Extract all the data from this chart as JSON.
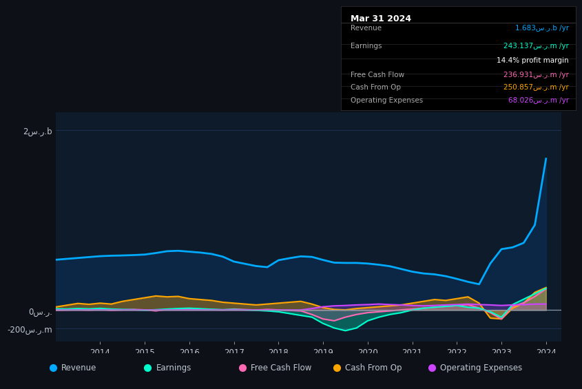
{
  "bg_color": "#0d1117",
  "plot_bg_color": "#0d1b2a",
  "grid_color": "#1e3050",
  "text_color": "#c0c8d0",
  "title_box": {
    "date": "Mar 31 2024",
    "rows": [
      {
        "label": "Revenue",
        "value": "1.683س.ر.b /yr",
        "color": "#00aaff"
      },
      {
        "label": "Earnings",
        "value": "243.137س.ر.m /yr",
        "color": "#00ffcc"
      },
      {
        "label": "",
        "value": "14.4% profit margin",
        "color": "#ffffff"
      },
      {
        "label": "Free Cash Flow",
        "value": "236.931س.ر.m /yr",
        "color": "#ff69b4"
      },
      {
        "label": "Cash From Op",
        "value": "250.857س.ر.m /yr",
        "color": "#ffa500"
      },
      {
        "label": "Operating Expenses",
        "value": "68.026س.ر.m /yr",
        "color": "#cc44ff"
      }
    ]
  },
  "ylabel_top": "2س.ر.b",
  "ylabel_zero": "0س.ر.",
  "ylabel_bottom": "-200س.ر.m",
  "ylim": [
    -350,
    2200
  ],
  "series": {
    "Revenue": {
      "color": "#00aaff",
      "lw": 2.0,
      "x": [
        2013.0,
        2013.25,
        2013.5,
        2013.75,
        2014.0,
        2014.25,
        2014.5,
        2014.75,
        2015.0,
        2015.25,
        2015.5,
        2015.75,
        2016.0,
        2016.25,
        2016.5,
        2016.75,
        2017.0,
        2017.25,
        2017.5,
        2017.75,
        2018.0,
        2018.25,
        2018.5,
        2018.75,
        2019.0,
        2019.25,
        2019.5,
        2019.75,
        2020.0,
        2020.25,
        2020.5,
        2020.75,
        2021.0,
        2021.25,
        2021.5,
        2021.75,
        2022.0,
        2022.25,
        2022.5,
        2022.75,
        2023.0,
        2023.25,
        2023.5,
        2023.75,
        2024.0
      ],
      "y": [
        560,
        570,
        580,
        590,
        600,
        605,
        608,
        612,
        618,
        635,
        655,
        660,
        650,
        640,
        625,
        595,
        540,
        515,
        490,
        478,
        555,
        578,
        598,
        592,
        558,
        528,
        525,
        525,
        518,
        505,
        488,
        458,
        428,
        408,
        398,
        378,
        348,
        315,
        288,
        518,
        678,
        698,
        748,
        948,
        1683
      ]
    },
    "Earnings": {
      "color": "#00ffcc",
      "lw": 1.5,
      "x": [
        2013.0,
        2013.25,
        2013.5,
        2013.75,
        2014.0,
        2014.25,
        2014.5,
        2014.75,
        2015.0,
        2015.25,
        2015.5,
        2015.75,
        2016.0,
        2016.25,
        2016.5,
        2016.75,
        2017.0,
        2017.25,
        2017.5,
        2017.75,
        2018.0,
        2018.25,
        2018.5,
        2018.75,
        2019.0,
        2019.25,
        2019.5,
        2019.75,
        2020.0,
        2020.25,
        2020.5,
        2020.75,
        2021.0,
        2021.25,
        2021.5,
        2021.75,
        2022.0,
        2022.25,
        2022.5,
        2022.75,
        2023.0,
        2023.25,
        2023.5,
        2023.75,
        2024.0
      ],
      "y": [
        15,
        12,
        18,
        14,
        20,
        12,
        8,
        5,
        0,
        5,
        12,
        18,
        22,
        16,
        10,
        5,
        8,
        3,
        -2,
        -8,
        -18,
        -38,
        -58,
        -78,
        -148,
        -198,
        -228,
        -198,
        -118,
        -78,
        -48,
        -28,
        2,
        22,
        32,
        42,
        52,
        32,
        22,
        -18,
        -78,
        62,
        122,
        182,
        243
      ]
    },
    "FreeCashFlow": {
      "color": "#ff69b4",
      "lw": 1.5,
      "x": [
        2013.0,
        2013.25,
        2013.5,
        2013.75,
        2014.0,
        2014.25,
        2014.5,
        2014.75,
        2015.0,
        2015.25,
        2015.5,
        2015.75,
        2016.0,
        2016.25,
        2016.5,
        2016.75,
        2017.0,
        2017.25,
        2017.5,
        2017.75,
        2018.0,
        2018.25,
        2018.5,
        2018.75,
        2019.0,
        2019.25,
        2019.5,
        2019.75,
        2020.0,
        2020.25,
        2020.5,
        2020.75,
        2021.0,
        2021.25,
        2021.5,
        2021.75,
        2022.0,
        2022.25,
        2022.5,
        2022.75,
        2023.0,
        2023.25,
        2023.5,
        2023.75,
        2024.0
      ],
      "y": [
        -2,
        2,
        5,
        0,
        8,
        -2,
        3,
        8,
        3,
        -8,
        8,
        12,
        18,
        12,
        6,
        2,
        12,
        6,
        2,
        8,
        3,
        -3,
        -8,
        -48,
        -98,
        -118,
        -78,
        -48,
        -28,
        -18,
        -8,
        3,
        12,
        22,
        32,
        42,
        52,
        62,
        22,
        -28,
        -98,
        42,
        82,
        152,
        237
      ]
    },
    "CashFromOp": {
      "color": "#ffa500",
      "lw": 1.5,
      "x": [
        2013.0,
        2013.25,
        2013.5,
        2013.75,
        2014.0,
        2014.25,
        2014.5,
        2014.75,
        2015.0,
        2015.25,
        2015.5,
        2015.75,
        2016.0,
        2016.25,
        2016.5,
        2016.75,
        2017.0,
        2017.25,
        2017.5,
        2017.75,
        2018.0,
        2018.25,
        2018.5,
        2018.75,
        2019.0,
        2019.25,
        2019.5,
        2019.75,
        2020.0,
        2020.25,
        2020.5,
        2020.75,
        2021.0,
        2021.25,
        2021.5,
        2021.75,
        2022.0,
        2022.25,
        2022.5,
        2022.75,
        2023.0,
        2023.25,
        2023.5,
        2023.75,
        2024.0
      ],
      "y": [
        35,
        55,
        75,
        65,
        78,
        68,
        98,
        118,
        138,
        158,
        148,
        153,
        128,
        118,
        108,
        88,
        78,
        68,
        58,
        68,
        78,
        88,
        98,
        68,
        28,
        8,
        3,
        18,
        28,
        38,
        48,
        58,
        78,
        98,
        118,
        108,
        128,
        148,
        78,
        -88,
        -98,
        22,
        78,
        198,
        251
      ]
    },
    "OperatingExpenses": {
      "color": "#cc44ff",
      "lw": 1.5,
      "x": [
        2013.0,
        2013.25,
        2013.5,
        2013.75,
        2014.0,
        2014.25,
        2014.5,
        2014.75,
        2015.0,
        2015.25,
        2015.5,
        2015.75,
        2016.0,
        2016.25,
        2016.5,
        2016.75,
        2017.0,
        2017.25,
        2017.5,
        2017.75,
        2018.0,
        2018.25,
        2018.5,
        2018.75,
        2019.0,
        2019.25,
        2019.5,
        2019.75,
        2020.0,
        2020.25,
        2020.5,
        2020.75,
        2021.0,
        2021.25,
        2021.5,
        2021.75,
        2022.0,
        2022.25,
        2022.5,
        2022.75,
        2023.0,
        2023.25,
        2023.5,
        2023.75,
        2024.0
      ],
      "y": [
        2,
        2,
        2,
        2,
        2,
        2,
        2,
        2,
        2,
        2,
        2,
        2,
        2,
        2,
        2,
        2,
        2,
        2,
        2,
        2,
        2,
        2,
        2,
        18,
        38,
        48,
        52,
        58,
        62,
        68,
        62,
        58,
        52,
        48,
        52,
        58,
        62,
        68,
        62,
        58,
        52,
        58,
        62,
        68,
        68
      ]
    }
  },
  "legend": [
    {
      "label": "Revenue",
      "color": "#00aaff"
    },
    {
      "label": "Earnings",
      "color": "#00ffcc"
    },
    {
      "label": "Free Cash Flow",
      "color": "#ff69b4"
    },
    {
      "label": "Cash From Op",
      "color": "#ffa500"
    },
    {
      "label": "Operating Expenses",
      "color": "#cc44ff"
    }
  ]
}
